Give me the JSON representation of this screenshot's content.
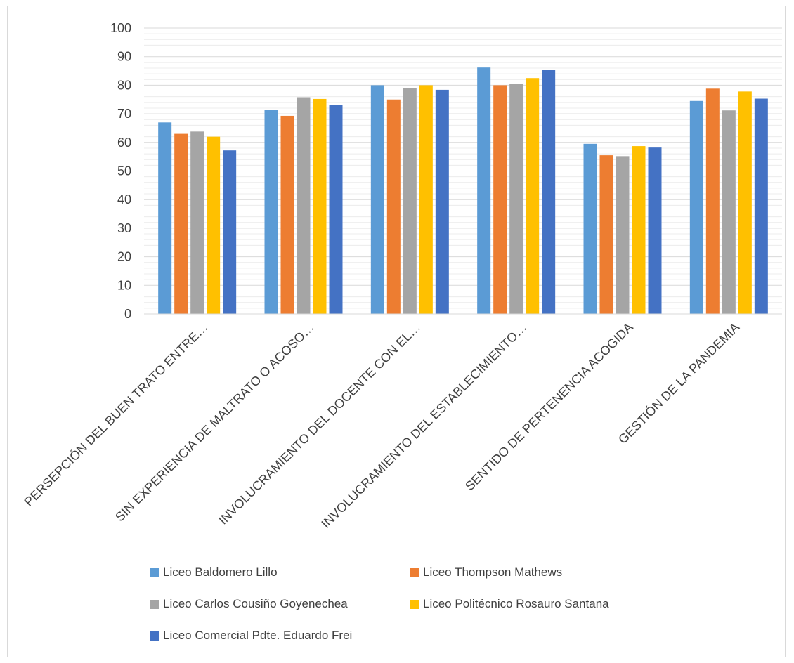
{
  "chart_data": {
    "type": "bar",
    "categories": [
      "PERSEPCIÓN DEL BUEN TRATO ENTRE…",
      "SIN EXPERIENCIA DE MALTRATO O ACOSO…",
      "INVOLUCRAMIENTO DEL DOCENTE CON EL…",
      "INVOLUCRAMIENTO DEL ESTABLECIMIENTO…",
      "SENTIDO DE PERTENENCIA ACOGIDA",
      "GESTIÓN DE LA PANDEMIA"
    ],
    "series": [
      {
        "name": "Liceo Baldomero Lillo",
        "color": "#5b9bd5",
        "values": [
          67,
          71.3,
          80,
          86.2,
          59.5,
          74.5
        ]
      },
      {
        "name": "Liceo Thompson Mathews",
        "color": "#ed7d31",
        "values": [
          63,
          69.3,
          75,
          80,
          55.5,
          78.8
        ]
      },
      {
        "name": "Liceo Carlos Cousiño Goyenechea",
        "color": "#a5a5a5",
        "values": [
          63.8,
          75.8,
          78.9,
          80.4,
          55.2,
          71.2
        ]
      },
      {
        "name": "Liceo Politécnico Rosauro Santana",
        "color": "#ffc000",
        "values": [
          62,
          75.2,
          80,
          82.5,
          58.7,
          77.8
        ]
      },
      {
        "name": "Liceo Comercial Pdte. Eduardo Frei",
        "color": "#4472c4",
        "values": [
          57.2,
          73,
          78.4,
          85.3,
          58.2,
          75.3
        ]
      }
    ],
    "yticks": [
      "0",
      "10",
      "20",
      "30",
      "40",
      "50",
      "60",
      "70",
      "80",
      "90",
      "100"
    ],
    "ylim": [
      0,
      100
    ],
    "title": "",
    "xlabel": "",
    "ylabel": "",
    "grid": true,
    "legend_position": "bottom"
  }
}
